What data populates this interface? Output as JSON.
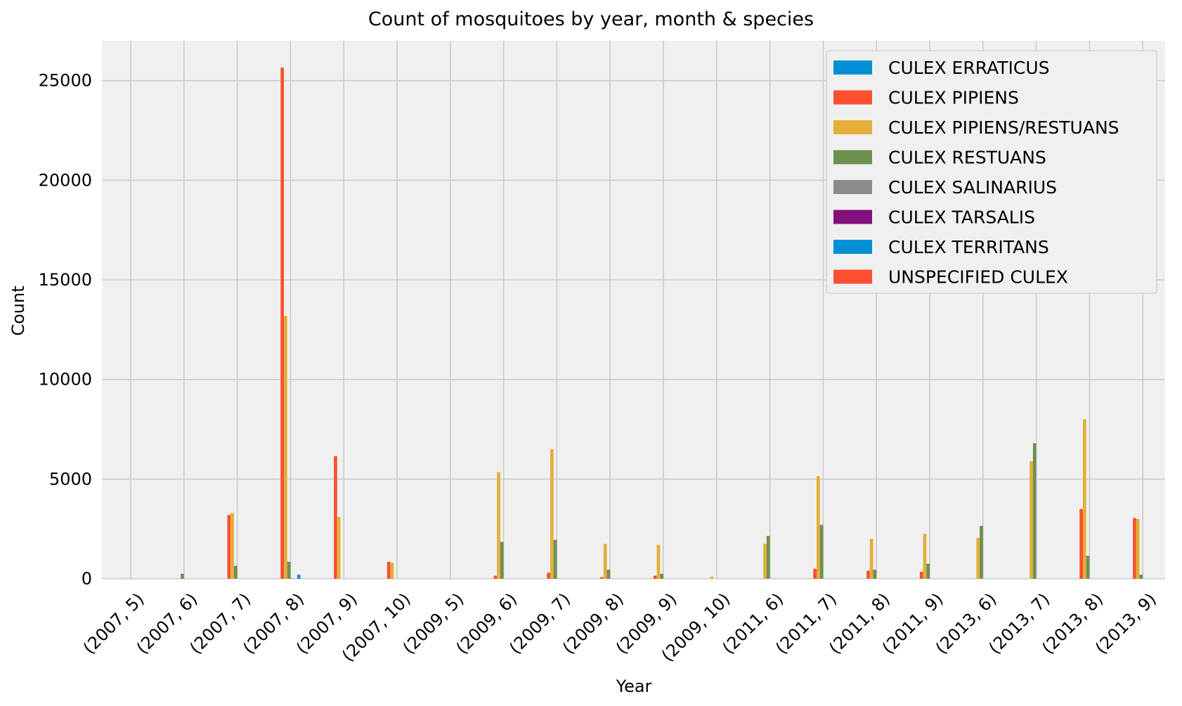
{
  "chart_data": {
    "type": "bar",
    "title": "Count of mosquitoes by year, month & species",
    "xlabel": "Year",
    "ylabel": "Count",
    "ylim": [
      0,
      27000
    ],
    "yticks": [
      0,
      5000,
      10000,
      15000,
      20000,
      25000
    ],
    "grid": true,
    "legend_position": "top-right",
    "categories": [
      "(2007, 5)",
      "(2007, 6)",
      "(2007, 7)",
      "(2007, 8)",
      "(2007, 9)",
      "(2007, 10)",
      "(2009, 5)",
      "(2009, 6)",
      "(2009, 7)",
      "(2009, 8)",
      "(2009, 9)",
      "(2009, 10)",
      "(2011, 6)",
      "(2011, 7)",
      "(2011, 8)",
      "(2011, 9)",
      "(2013, 6)",
      "(2013, 7)",
      "(2013, 8)",
      "(2013, 9)"
    ],
    "series": [
      {
        "name": "CULEX ERRATICUS",
        "color": "#008fd5",
        "values": [
          0,
          0,
          0,
          0,
          0,
          0,
          0,
          0,
          0,
          0,
          0,
          0,
          0,
          0,
          0,
          0,
          0,
          0,
          0,
          0
        ]
      },
      {
        "name": "CULEX PIPIENS",
        "color": "#fc4f30",
        "values": [
          0,
          0,
          3200,
          25650,
          6150,
          850,
          0,
          150,
          300,
          80,
          150,
          0,
          0,
          500,
          400,
          350,
          0,
          0,
          3500,
          3050
        ]
      },
      {
        "name": "CULEX PIPIENS/RESTUANS",
        "color": "#e5ae38",
        "values": [
          10,
          10,
          3300,
          13200,
          3100,
          800,
          0,
          5350,
          6500,
          1750,
          1700,
          100,
          1750,
          5150,
          2000,
          2250,
          2050,
          5900,
          8000,
          3000
        ]
      },
      {
        "name": "CULEX RESTUANS",
        "color": "#6d904f",
        "values": [
          5,
          250,
          650,
          850,
          0,
          0,
          0,
          1850,
          1950,
          450,
          250,
          0,
          2150,
          2700,
          450,
          750,
          2650,
          6800,
          1150,
          200
        ]
      },
      {
        "name": "CULEX SALINARIUS",
        "color": "#8b8b8b",
        "values": [
          0,
          0,
          0,
          20,
          0,
          0,
          0,
          0,
          0,
          0,
          0,
          0,
          0,
          0,
          0,
          0,
          0,
          0,
          0,
          0
        ]
      },
      {
        "name": "CULEX TARSALIS",
        "color": "#810f7c",
        "values": [
          0,
          0,
          0,
          0,
          0,
          0,
          0,
          0,
          0,
          0,
          0,
          0,
          0,
          0,
          0,
          0,
          0,
          0,
          0,
          0
        ]
      },
      {
        "name": "CULEX TERRITANS",
        "color": "#008fd5",
        "values": [
          0,
          0,
          0,
          200,
          0,
          0,
          0,
          0,
          0,
          0,
          0,
          0,
          0,
          0,
          0,
          0,
          0,
          0,
          0,
          0
        ]
      },
      {
        "name": "UNSPECIFIED CULEX",
        "color": "#fc4f30",
        "values": [
          0,
          0,
          0,
          0,
          0,
          0,
          0,
          0,
          0,
          0,
          0,
          0,
          0,
          0,
          0,
          0,
          0,
          0,
          0,
          0
        ]
      }
    ]
  }
}
